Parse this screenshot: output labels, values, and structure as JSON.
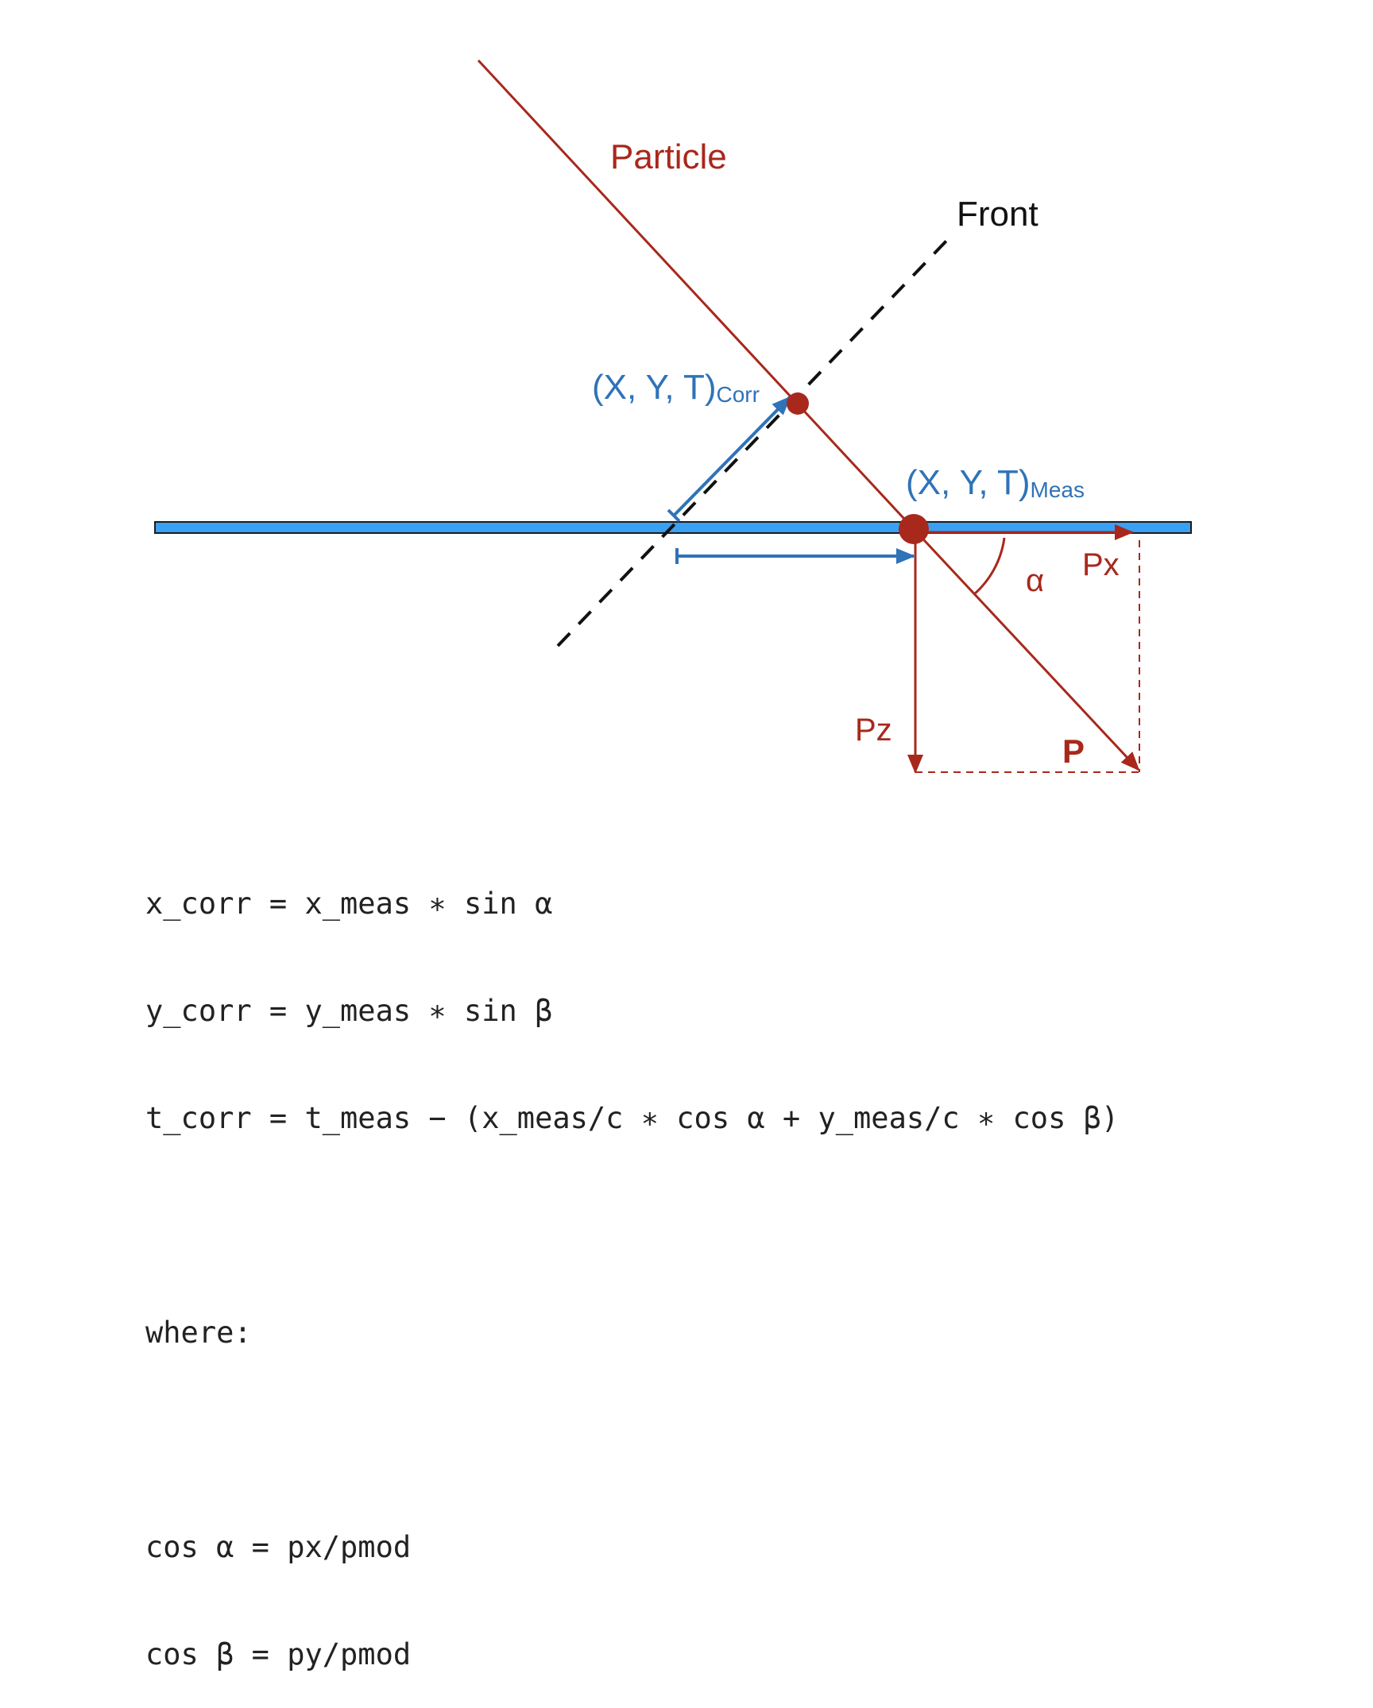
{
  "labels": {
    "particle": "Particle",
    "front": "Front",
    "corr_point_main": "(X, Y, T)",
    "corr_point_sub": "Corr",
    "meas_point_main": "(X, Y, T)",
    "meas_point_sub": "Meas",
    "px": "Px",
    "pz": "Pz",
    "p": "P",
    "alpha": "α"
  },
  "colors": {
    "particle": "#a8281c",
    "blue": "#2f73b8",
    "detector_fill": "#3aa0f2",
    "front": "#111111",
    "text": "#222222"
  },
  "formulas": [
    "x_corr = x_meas ∗ sin α",
    "y_corr = y_meas ∗ sin β",
    "t_corr = t_meas − (x_meas/c ∗ cos α + y_meas/c ∗ cos β)",
    "",
    "where:",
    "",
    "cos α = px/pmod",
    "cos β = py/pmod"
  ]
}
